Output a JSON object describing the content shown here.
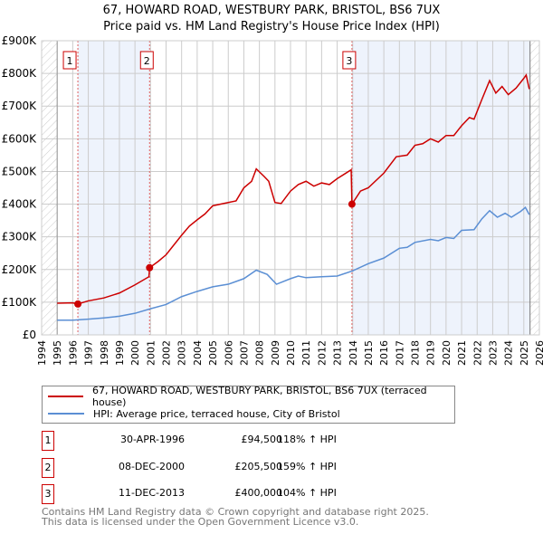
{
  "chart_data": {
    "type": "line",
    "title": "67, HOWARD ROAD, WESTBURY PARK, BRISTOL, BS6 7UX",
    "subtitle": "Price paid vs. HM Land Registry's House Price Index (HPI)",
    "xlim": [
      1994,
      2026
    ],
    "ylim": [
      0,
      900000
    ],
    "x_ticks": [
      "1994",
      "1995",
      "1996",
      "1997",
      "1998",
      "1999",
      "2000",
      "2001",
      "2002",
      "2003",
      "2004",
      "2005",
      "2006",
      "2007",
      "2008",
      "2009",
      "2010",
      "2011",
      "2012",
      "2013",
      "2014",
      "2015",
      "2016",
      "2017",
      "2018",
      "2019",
      "2020",
      "2021",
      "2022",
      "2023",
      "2024",
      "2025",
      "2026"
    ],
    "y_ticks": [
      {
        "v": 0,
        "l": "£0"
      },
      {
        "v": 100000,
        "l": "£100K"
      },
      {
        "v": 200000,
        "l": "£200K"
      },
      {
        "v": 300000,
        "l": "£300K"
      },
      {
        "v": 400000,
        "l": "£400K"
      },
      {
        "v": 500000,
        "l": "£500K"
      },
      {
        "v": 600000,
        "l": "£600K"
      },
      {
        "v": 700000,
        "l": "£700K"
      },
      {
        "v": 800000,
        "l": "£800K"
      },
      {
        "v": 900000,
        "l": "£900K"
      }
    ],
    "grid": true,
    "series": [
      {
        "name": "67, HOWARD ROAD, WESTBURY PARK, BRISTOL, BS6 7UX (terraced house)",
        "color": "#cc0000",
        "x": [
          1995,
          1996,
          1996.33,
          1997,
          1998,
          1999,
          2000,
          2000.9,
          2000.94,
          2001.5,
          2002,
          2003,
          2003.5,
          2004,
          2004.5,
          2005,
          2006,
          2006.5,
          2007,
          2007.5,
          2007.8,
          2008.3,
          2008.6,
          2009,
          2009.4,
          2010,
          2010.5,
          2011,
          2011.5,
          2012,
          2012.5,
          2013,
          2013.9,
          2013.95,
          2014.5,
          2015,
          2016,
          2016.8,
          2017.5,
          2018,
          2018.5,
          2019,
          2019.5,
          2020,
          2020.5,
          2021,
          2021.5,
          2021.8,
          2022.3,
          2022.8,
          2023.2,
          2023.6,
          2024,
          2024.5,
          2025,
          2025.15,
          2025.35
        ],
        "y": [
          97000,
          98000,
          94500,
          104000,
          113000,
          128000,
          153000,
          178000,
          205500,
          225000,
          245000,
          305000,
          333000,
          352000,
          370000,
          395000,
          405000,
          410000,
          450000,
          470000,
          508000,
          485000,
          470000,
          405000,
          402000,
          440000,
          460000,
          470000,
          455000,
          465000,
          460000,
          478000,
          505000,
          400000,
          440000,
          450000,
          495000,
          545000,
          550000,
          580000,
          585000,
          600000,
          590000,
          610000,
          610000,
          640000,
          665000,
          660000,
          720000,
          778000,
          740000,
          760000,
          735000,
          755000,
          785000,
          795000,
          752000
        ]
      },
      {
        "name": "HPI: Average price, terraced house, City of Bristol",
        "color": "#5b8fd4",
        "x": [
          1995,
          1996,
          1997,
          1998,
          1999,
          2000,
          2001,
          2002,
          2003,
          2004,
          2005,
          2006,
          2007,
          2007.8,
          2008.5,
          2009.1,
          2010,
          2010.5,
          2011,
          2012,
          2013,
          2014,
          2015,
          2016,
          2017,
          2017.5,
          2018,
          2019,
          2019.5,
          2020,
          2020.5,
          2021,
          2021.8,
          2022.3,
          2022.8,
          2023.3,
          2023.8,
          2024.2,
          2024.8,
          2025.1,
          2025.35
        ],
        "y": [
          45000,
          45000,
          48000,
          52000,
          57000,
          66000,
          80000,
          93000,
          117000,
          133000,
          147000,
          155000,
          172000,
          198000,
          185000,
          155000,
          172000,
          180000,
          175000,
          178000,
          180000,
          196000,
          218000,
          235000,
          265000,
          268000,
          283000,
          292000,
          288000,
          298000,
          295000,
          320000,
          322000,
          355000,
          380000,
          360000,
          372000,
          360000,
          378000,
          390000,
          368000
        ]
      }
    ],
    "sales": [
      {
        "label": "1",
        "x": 1996.33,
        "y": 94500
      },
      {
        "label": "2",
        "x": 2000.94,
        "y": 205500
      },
      {
        "label": "3",
        "x": 2013.95,
        "y": 400000
      }
    ]
  },
  "legend": {
    "red": "67, HOWARD ROAD, WESTBURY PARK, BRISTOL, BS6 7UX (terraced house)",
    "blue": "HPI: Average price, terraced house, City of Bristol"
  },
  "transactions": [
    {
      "n": "1",
      "date": "30-APR-1996",
      "price": "£94,500",
      "pct": "118% ↑ HPI"
    },
    {
      "n": "2",
      "date": "08-DEC-2000",
      "price": "£205,500",
      "pct": "159% ↑ HPI"
    },
    {
      "n": "3",
      "date": "11-DEC-2013",
      "price": "£400,000",
      "pct": "104% ↑ HPI"
    }
  ],
  "footer": {
    "line1": "Contains HM Land Registry data © Crown copyright and database right 2025.",
    "line2": "This data is licensed under the Open Government Licence v3.0."
  }
}
